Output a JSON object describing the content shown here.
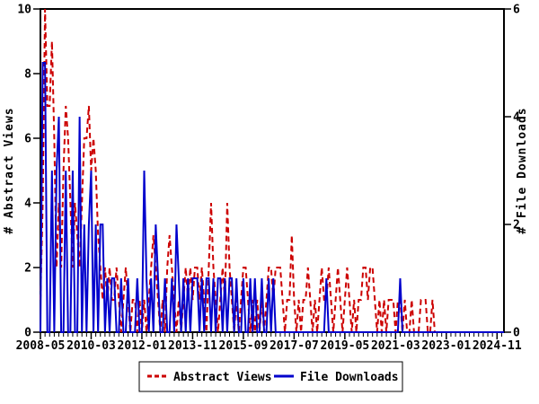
{
  "chart_data": {
    "type": "line",
    "title": "",
    "x_start": "2008-05",
    "months_total": 202,
    "x_tick_labels": [
      "2008-05",
      "2010-03",
      "2012-01",
      "2013-11",
      "2015-09",
      "2017-07",
      "2019-05",
      "2021-03",
      "2023-01",
      "2024-11"
    ],
    "x_tick_month_indices": [
      0,
      22,
      44,
      66,
      88,
      110,
      132,
      154,
      176,
      198
    ],
    "x_minor_step_months": 2,
    "grid": "off",
    "left_axis": {
      "label": "# Abstract Views",
      "min": 0,
      "max": 10,
      "ticks": [
        0,
        2,
        4,
        6,
        8,
        10
      ]
    },
    "right_axis": {
      "label": "# File Downloads",
      "min": 0,
      "max": 6,
      "ticks": [
        0,
        2,
        4,
        6
      ]
    },
    "legend": {
      "position": "bottom-center",
      "border": true
    },
    "series": [
      {
        "name": "Abstract Views",
        "axis": "left",
        "color": "#cc0000",
        "style": "dashed",
        "values": [
          1,
          4,
          10,
          7,
          7,
          9,
          6,
          2,
          4,
          2,
          5,
          7,
          6,
          4,
          2,
          4,
          3,
          2,
          4,
          6,
          6,
          7,
          5,
          6,
          5,
          3,
          2,
          1,
          2,
          1,
          2,
          1,
          1,
          2,
          1,
          0,
          1,
          2,
          1,
          0,
          1,
          1,
          0,
          1,
          0,
          1,
          0,
          1,
          2,
          3,
          2,
          1,
          0,
          1,
          0,
          2,
          3,
          2,
          1,
          0,
          1,
          0,
          1,
          2,
          1,
          2,
          1,
          2,
          2,
          1,
          2,
          1,
          0,
          2,
          4,
          2,
          1,
          0,
          1,
          2,
          1,
          4,
          2,
          1,
          0,
          1,
          0,
          1,
          2,
          2,
          1,
          0,
          1,
          0,
          1,
          0,
          1,
          0,
          1,
          2,
          2,
          1,
          2,
          2,
          2,
          1,
          0,
          1,
          1,
          3,
          1,
          0,
          1,
          0,
          1,
          1,
          2,
          1,
          0,
          1,
          0,
          1,
          2,
          1,
          1,
          2,
          1,
          0,
          1,
          2,
          1,
          0,
          1,
          2,
          1,
          0,
          1,
          0,
          1,
          1,
          2,
          2,
          1,
          2,
          2,
          1,
          0,
          1,
          0,
          1,
          0,
          1,
          1,
          1,
          0,
          1,
          1,
          0,
          1,
          0,
          0,
          1,
          0,
          0,
          0,
          1,
          1,
          1,
          0,
          0,
          1,
          0,
          0,
          0,
          0,
          0,
          0,
          0,
          0,
          0,
          0,
          0,
          0,
          0,
          0,
          0,
          0,
          0,
          0,
          0,
          0,
          0,
          0,
          0,
          0,
          0,
          0,
          0,
          0,
          0,
          0,
          0
        ]
      },
      {
        "name": "File Downloads",
        "axis": "right",
        "color": "#0000cc",
        "style": "solid",
        "values": [
          0,
          5,
          5,
          0,
          0,
          3,
          0,
          3,
          4,
          0,
          0,
          3,
          0,
          0,
          3,
          0,
          0,
          4,
          0,
          2,
          0,
          2,
          3,
          0,
          2,
          0,
          2,
          2,
          0,
          1,
          0,
          1,
          1,
          0,
          0,
          1,
          0,
          0,
          1,
          0,
          0,
          0,
          1,
          0,
          0,
          3,
          1,
          0,
          1,
          0,
          2,
          1,
          0,
          0,
          1,
          0,
          0,
          1,
          0,
          2,
          1,
          0,
          1,
          0,
          1,
          0,
          1,
          1,
          1,
          0,
          1,
          0,
          1,
          1,
          0,
          1,
          0,
          1,
          1,
          0,
          1,
          0,
          1,
          1,
          0,
          1,
          0,
          0,
          1,
          0,
          0,
          1,
          0,
          1,
          0,
          0,
          1,
          0,
          0,
          1,
          0,
          1,
          0,
          0,
          0,
          0,
          0,
          0,
          0,
          0,
          0,
          0,
          0,
          0,
          0,
          0,
          0,
          0,
          0,
          0,
          0,
          0,
          0,
          0,
          1,
          0,
          0,
          0,
          0,
          0,
          0,
          0,
          0,
          0,
          0,
          0,
          0,
          0,
          0,
          0,
          0,
          0,
          0,
          0,
          0,
          0,
          0,
          0,
          0,
          0,
          0,
          0,
          0,
          0,
          0,
          0,
          1,
          0,
          0,
          0,
          0,
          0,
          0,
          0,
          0,
          0,
          0,
          0,
          0,
          0,
          0,
          0,
          0,
          0,
          0,
          0,
          0,
          0,
          0,
          0,
          0,
          0,
          0,
          0,
          0,
          0,
          0,
          0,
          0,
          0,
          0,
          0,
          0,
          0,
          0,
          0,
          0,
          0,
          0,
          0,
          0,
          0
        ]
      }
    ]
  },
  "colors": {
    "axis": "#000000",
    "background": "#ffffff",
    "legend_border": "#000000"
  }
}
